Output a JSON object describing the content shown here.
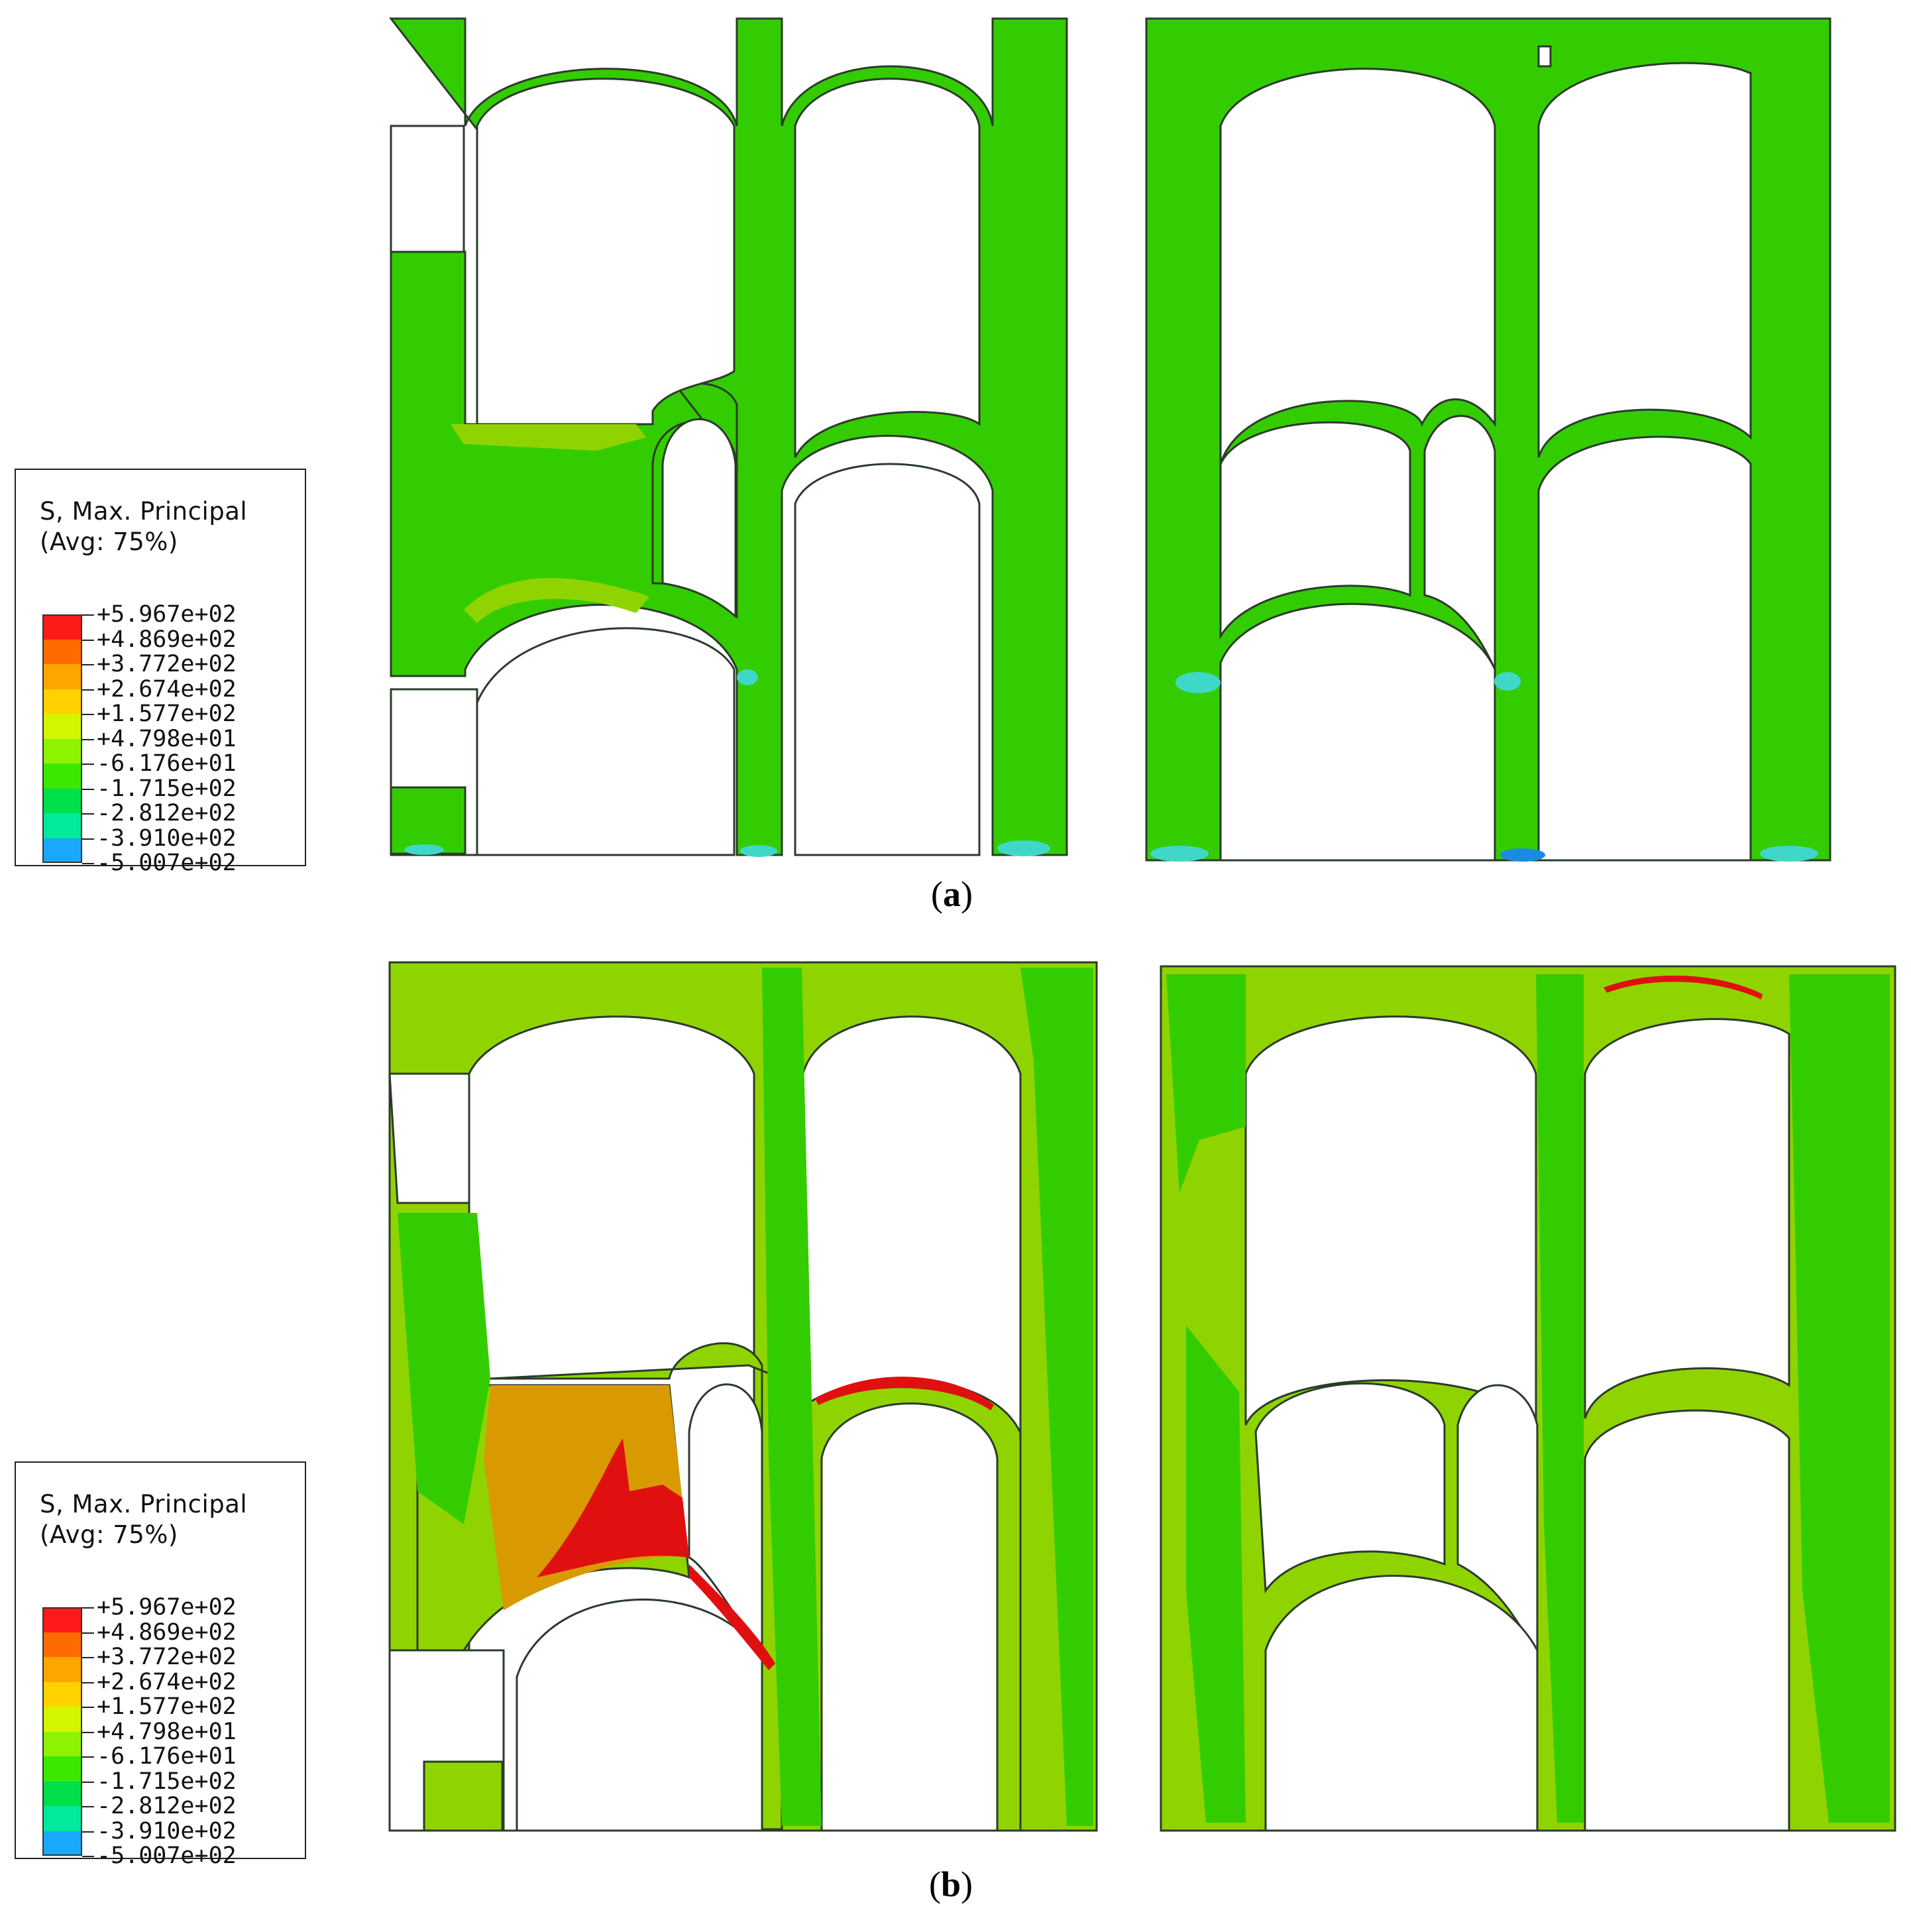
{
  "legend": {
    "title_line1": "S, Max. Principal",
    "title_line2": "(Avg: 75%)",
    "entries": [
      {
        "label": "+5.967e+02",
        "color": "#ff1a1a"
      },
      {
        "label": "+4.869e+02",
        "color": "#ff6a00"
      },
      {
        "label": "+3.772e+02",
        "color": "#ffa500"
      },
      {
        "label": "+2.674e+02",
        "color": "#ffd200"
      },
      {
        "label": "+1.577e+02",
        "color": "#d4f500"
      },
      {
        "label": "+4.798e+01",
        "color": "#8ef200"
      },
      {
        "label": "-6.176e+01",
        "color": "#3ce800"
      },
      {
        "label": "-1.715e+02",
        "color": "#00e04a"
      },
      {
        "label": "-2.812e+02",
        "color": "#00ea9a"
      },
      {
        "label": "-3.910e+02",
        "color": "#00f0e6"
      },
      {
        "label": "-5.007e+02",
        "color": "#1aa8ff"
      }
    ]
  },
  "panels": [
    {
      "caption": "a"
    },
    {
      "caption": "b"
    }
  ],
  "colors": {
    "green_body": "#33cc00",
    "green_light": "#8fd400",
    "orange_zone": "#d89a00",
    "red_zone": "#e01010",
    "cyan_zone": "#40e0d0",
    "outline": "#1a4a1a"
  }
}
